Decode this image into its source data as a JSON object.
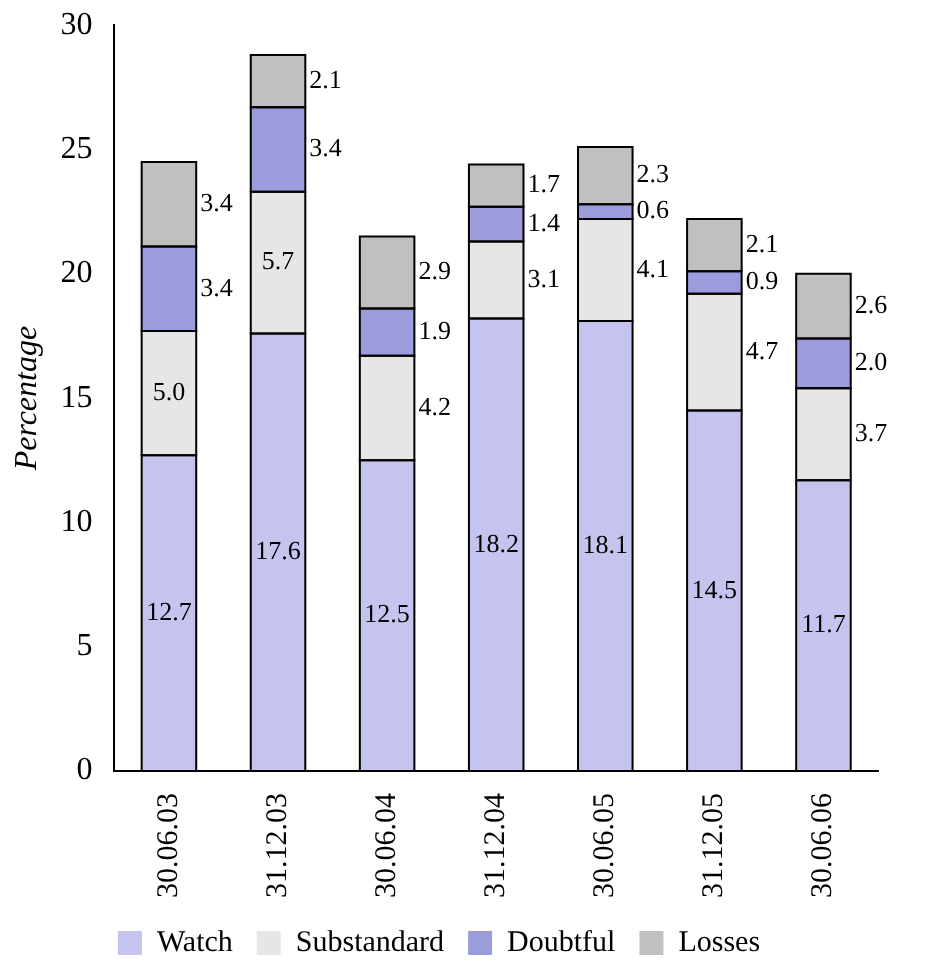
{
  "chart_data": {
    "type": "bar",
    "stacked": true,
    "ylabel": "Percentage",
    "categories": [
      "30.06.03",
      "31.12.03",
      "30.06.04",
      "31.12.04",
      "30.06.05",
      "31.12.05",
      "30.06.06"
    ],
    "series": [
      {
        "name": "Watch",
        "color": "#c4c4ee",
        "values": [
          12.7,
          17.6,
          12.5,
          18.2,
          18.1,
          14.5,
          11.7
        ],
        "value_labels": [
          "12.7",
          "17.6",
          "12.5",
          "18.2",
          "18.1",
          "14.5",
          "11.7"
        ]
      },
      {
        "name": "Substandard",
        "color": "#e6e6e6",
        "values": [
          5.0,
          5.7,
          4.2,
          3.1,
          4.1,
          4.7,
          3.7
        ],
        "value_labels": [
          "5.0",
          "5.7",
          "4.2",
          "3.1",
          "4.1",
          "4.7",
          "3.7"
        ]
      },
      {
        "name": "Doubtful",
        "color": "#9c9cdc",
        "values": [
          3.4,
          3.4,
          1.9,
          1.4,
          0.6,
          0.9,
          2.0
        ],
        "value_labels": [
          "3.4",
          "3.4",
          "1.9",
          "1.4",
          "0.6",
          "0.9",
          "2.0"
        ]
      },
      {
        "name": "Losses",
        "color": "#c0c0c0",
        "values": [
          3.4,
          2.1,
          2.9,
          1.7,
          2.3,
          2.1,
          2.6
        ],
        "value_labels": [
          "3.4",
          "2.1",
          "2.9",
          "1.7",
          "2.3",
          "2.1",
          "2.6"
        ]
      }
    ],
    "ylim": [
      0,
      30
    ],
    "yticks": [
      0,
      5,
      10,
      15,
      20,
      25,
      30
    ],
    "grid": false,
    "legend": "bottom"
  }
}
